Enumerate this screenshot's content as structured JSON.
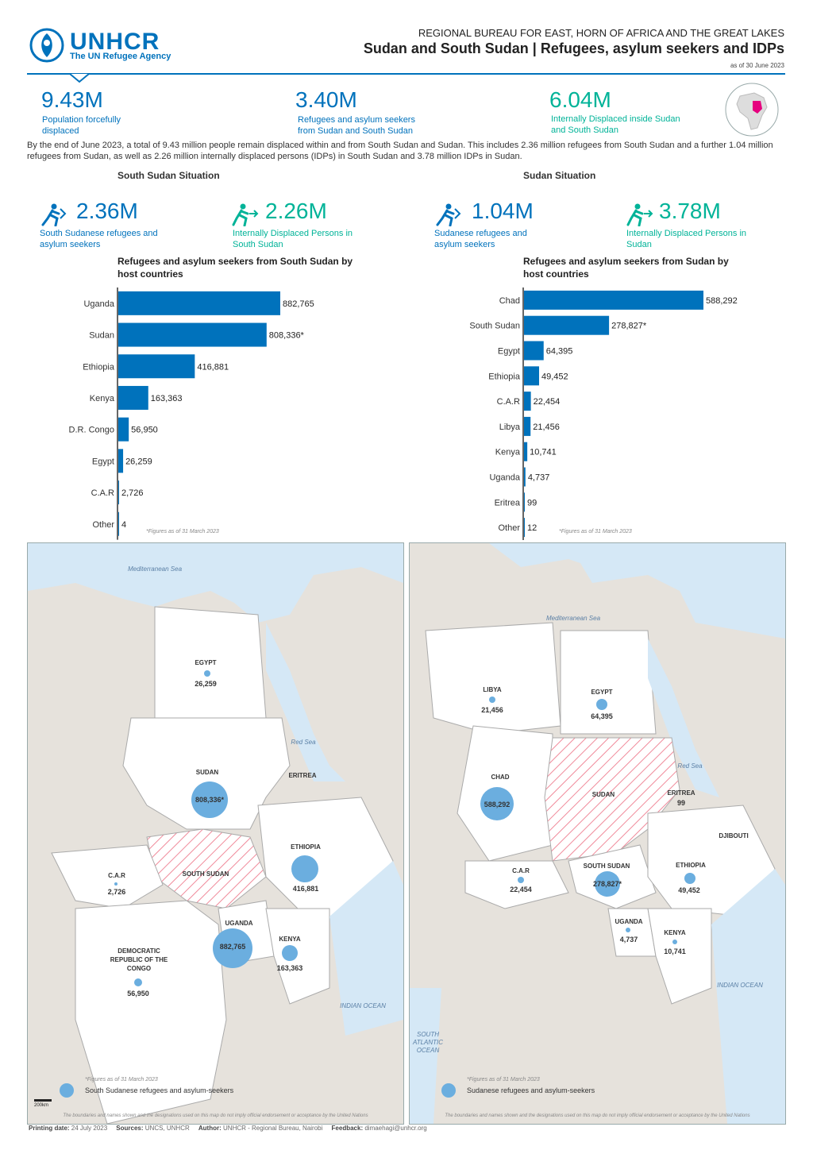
{
  "header": {
    "logo_text": "UNHCR",
    "logo_sub": "The UN Refugee Agency",
    "supertitle": "REGIONAL BUREAU FOR EAST, HORN OF AFRICA AND THE GREAT LAKES",
    "title": "Sudan and South Sudan | Refugees, asylum seekers and IDPs",
    "date": "as of 30 June 2023"
  },
  "kpis": [
    {
      "value": "9.43M",
      "label1": "Population forcefully",
      "label2": "displaced"
    },
    {
      "value": "3.40M",
      "label1": "Refugees and asylum seekers",
      "label2": "from Sudan and South Sudan"
    },
    {
      "value": "6.04M",
      "label1": "Internally Displaced inside Sudan",
      "label2": "and South Sudan"
    }
  ],
  "intro": "By the end of June 2023, a total of 9.43 million people remain displaced within and from South Sudan and Sudan. This includes 2.36 million refugees from South Sudan and a further 1.04 million refugees from Sudan, as well as 2.26 million internally displaced persons (IDPs) in South Sudan and 3.78 million IDPs in Sudan.",
  "south_sudan": {
    "situation_title": "South Sudan Situation",
    "kpi_refugees": {
      "value": "2.36M",
      "label1": "South Sudanese refugees and",
      "label2": "asylum seekers"
    },
    "kpi_idps": {
      "value": "2.26M",
      "label1": "Internally Displaced Persons in",
      "label2": "South Sudan"
    },
    "chart_title1": "Refugees and asylum seekers from South Sudan by",
    "chart_title2": "host countries",
    "note": "*Figures as of 31 March 2023"
  },
  "sudan": {
    "situation_title": "Sudan Situation",
    "kpi_refugees": {
      "value": "1.04M",
      "label1": "Sudanese refugees and",
      "label2": "asylum seekers"
    },
    "kpi_idps": {
      "value": "3.78M",
      "label1": "Internally Displaced Persons in",
      "label2": "Sudan"
    },
    "chart_title1": "Refugees and asylum seekers from Sudan by",
    "chart_title2": "host countries",
    "note": "*Figures as of 31 March 2023"
  },
  "chart_data": [
    {
      "type": "bar",
      "orientation": "horizontal",
      "title": "Refugees and asylum seekers from South Sudan by host countries",
      "categories": [
        "Uganda",
        "Sudan",
        "Ethiopia",
        "Kenya",
        "D.R. Congo",
        "Egypt",
        "C.A.R",
        "Other"
      ],
      "values": [
        882765,
        808336,
        416881,
        163363,
        56950,
        26259,
        2726,
        4
      ],
      "value_labels": [
        "882,765",
        "808,336*",
        "416,881",
        "163,363",
        "56,950",
        "26,259",
        "2,726",
        "4"
      ],
      "color": "#0072BC"
    },
    {
      "type": "bar",
      "orientation": "horizontal",
      "title": "Refugees and asylum seekers from Sudan by host countries",
      "categories": [
        "Chad",
        "South Sudan",
        "Egypt",
        "Ethiopia",
        "C.A.R",
        "Libya",
        "Kenya",
        "Uganda",
        "Eritrea",
        "Other"
      ],
      "values": [
        588292,
        278827,
        64395,
        49452,
        22454,
        21456,
        10741,
        4737,
        99,
        12
      ],
      "value_labels": [
        "588,292",
        "278,827*",
        "64,395",
        "49,452",
        "22,454",
        "21,456",
        "10,741",
        "4,737",
        "99",
        "12"
      ],
      "color": "#0072BC"
    }
  ],
  "map_left": {
    "seas": {
      "med": "Mediterranean Sea",
      "red": "Red Sea",
      "indian": "INDIAN OCEAN"
    },
    "origin": "SOUTH SUDAN",
    "countries": [
      {
        "name": "EGYPT",
        "value": "26,259"
      },
      {
        "name": "SUDAN",
        "value": "808,336*"
      },
      {
        "name": "ERITREA",
        "value": ""
      },
      {
        "name": "ETHIOPIA",
        "value": "416,881"
      },
      {
        "name": "C.A.R",
        "value": "2,726"
      },
      {
        "name": "UGANDA",
        "value": "882,765"
      },
      {
        "name": "KENYA",
        "value": "163,363"
      },
      {
        "name": "DEMOCRATIC REPUBLIC OF THE CONGO",
        "value": "56,950"
      }
    ],
    "note": "*Figures as of 31 March 2023",
    "legend": "South Sudanese refugees and asylum-seekers",
    "scale": "200km",
    "disclaimer": "The boundaries and names shown and the designations used on this map do not imply official endorsement or acceptance by the United Nations"
  },
  "map_right": {
    "seas": {
      "med": "Mediterranean Sea",
      "red": "Red Sea",
      "indian": "INDIAN OCEAN",
      "atlantic": "SOUTH ATLANTIC OCEAN"
    },
    "origin": "SUDAN",
    "countries": [
      {
        "name": "LIBYA",
        "value": "21,456"
      },
      {
        "name": "EGYPT",
        "value": "64,395"
      },
      {
        "name": "CHAD",
        "value": "588,292"
      },
      {
        "name": "ERITREA",
        "value": "99"
      },
      {
        "name": "DJIBOUTI",
        "value": ""
      },
      {
        "name": "C.A.R",
        "value": "22,454"
      },
      {
        "name": "SOUTH SUDAN",
        "value": "278,827*"
      },
      {
        "name": "ETHIOPIA",
        "value": "49,452"
      },
      {
        "name": "UGANDA",
        "value": "4,737"
      },
      {
        "name": "KENYA",
        "value": "10,741"
      }
    ],
    "note": "*Figures as of 31 March 2023",
    "legend": "Sudanese refugees and asylum-seekers",
    "disclaimer": "The boundaries and names shown and the designations used on this map do not imply official endorsement or acceptance by the United Nations"
  },
  "footer": {
    "printing_label": "Printing date:",
    "printing_value": "24 July 2023",
    "sources_label": "Sources:",
    "sources_value": "UNCS, UNHCR",
    "author_label": "Author:",
    "author_value": "UNHCR - Regional Bureau, Nairobi",
    "feedback_label": "Feedback:",
    "feedback_value": "dimaehagi@unhcr.org"
  },
  "colors": {
    "brand": "#0072BC",
    "teal": "#00B398",
    "pink": "#E6007E",
    "bubble": "#6BAEDF"
  }
}
